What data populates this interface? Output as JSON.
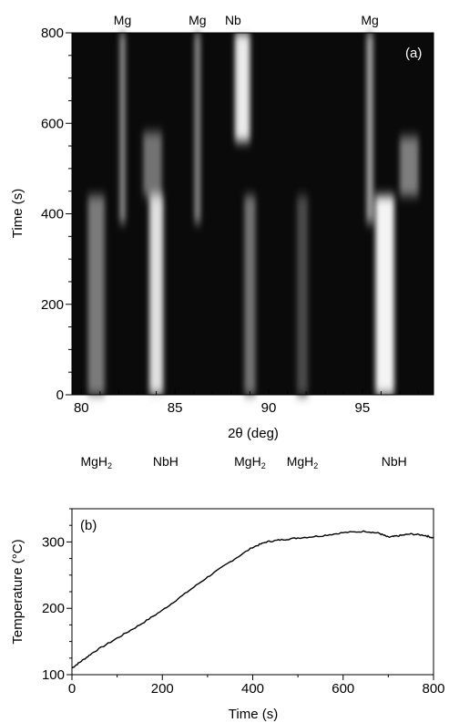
{
  "chart_data": [
    {
      "type": "heatmap",
      "panel_label": "(a)",
      "xlabel": "2θ (deg)",
      "ylabel": "Time (s)",
      "xlim": [
        79.5,
        98.8
      ],
      "ylim": [
        0,
        800
      ],
      "x_ticks": [
        80,
        85,
        90,
        95
      ],
      "y_ticks": [
        0,
        200,
        400,
        600,
        800
      ],
      "colormap": "grayscale",
      "top_labels": [
        {
          "text": "Mg",
          "x": 82.2
        },
        {
          "text": "Mg",
          "x": 86.2
        },
        {
          "text": "Nb",
          "x": 88.1
        },
        {
          "text": "Mg",
          "x": 95.4
        }
      ],
      "bottom_labels": [
        {
          "text": "MgH",
          "sub": "2",
          "x": 80.8
        },
        {
          "text": "NbH",
          "x": 84.5
        },
        {
          "text": "MgH",
          "sub": "2",
          "x": 89.0
        },
        {
          "text": "MgH",
          "sub": "2",
          "x": 91.8
        },
        {
          "text": "NbH",
          "x": 96.7
        }
      ],
      "features": [
        {
          "x": 80.8,
          "t0": 0,
          "t1": 440,
          "intensity": 0.38,
          "width_deg": 0.9
        },
        {
          "x": 84.0,
          "t0": 0,
          "t1": 440,
          "intensity": 0.85,
          "width_deg": 0.75
        },
        {
          "x": 89.0,
          "t0": 0,
          "t1": 440,
          "intensity": 0.35,
          "width_deg": 0.6
        },
        {
          "x": 91.8,
          "t0": 0,
          "t1": 440,
          "intensity": 0.15,
          "width_deg": 0.6
        },
        {
          "x": 96.2,
          "t0": 0,
          "t1": 440,
          "intensity": 0.95,
          "width_deg": 1.0
        },
        {
          "x": 82.2,
          "t0": 380,
          "t1": 800,
          "intensity": 0.5,
          "width_deg": 0.3
        },
        {
          "x": 86.2,
          "t0": 380,
          "t1": 800,
          "intensity": 0.5,
          "width_deg": 0.3
        },
        {
          "x": 95.4,
          "t0": 380,
          "t1": 800,
          "intensity": 0.6,
          "width_deg": 0.35
        },
        {
          "x": 88.6,
          "t0": 560,
          "t1": 800,
          "intensity": 0.9,
          "width_deg": 0.8
        },
        {
          "x": 83.8,
          "t0": 440,
          "t1": 580,
          "intensity": 0.35,
          "width_deg": 1.0
        },
        {
          "x": 97.5,
          "t0": 440,
          "t1": 570,
          "intensity": 0.4,
          "width_deg": 1.0
        }
      ]
    },
    {
      "type": "line",
      "panel_label": "(b)",
      "xlabel": "Time (s)",
      "ylabel": "Temperature (°C)",
      "xlim": [
        0,
        800
      ],
      "ylim": [
        100,
        350
      ],
      "x_ticks": [
        0,
        200,
        400,
        600,
        800
      ],
      "y_ticks": [
        100,
        200,
        300
      ],
      "series": [
        {
          "x": [
            0,
            20,
            50,
            100,
            150,
            200,
            250,
            300,
            350,
            400,
            430,
            460,
            500,
            550,
            600,
            650,
            680,
            700,
            720,
            750,
            780,
            800
          ],
          "y": [
            110,
            120,
            135,
            155,
            175,
            197,
            222,
            247,
            270,
            292,
            300,
            303,
            306,
            309,
            314,
            316,
            313,
            307,
            309,
            312,
            310,
            306
          ]
        }
      ]
    }
  ]
}
